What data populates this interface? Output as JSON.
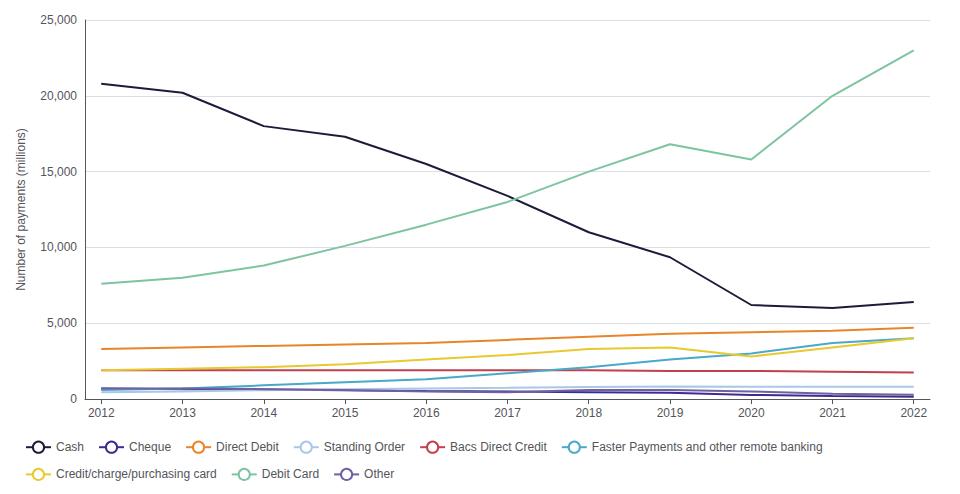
{
  "chart_data": {
    "type": "line",
    "x": [
      2012,
      2013,
      2014,
      2015,
      2016,
      2017,
      2018,
      2019,
      2020,
      2021,
      2022
    ],
    "series": [
      {
        "name": "Cash",
        "color": "#1c1c3a",
        "values": [
          20800,
          20200,
          18000,
          17300,
          15500,
          13400,
          11000,
          9350,
          6200,
          6000,
          6400
        ]
      },
      {
        "name": "Cheque",
        "color": "#3d2b8e",
        "values": [
          700,
          650,
          620,
          580,
          530,
          490,
          450,
          410,
          270,
          200,
          150
        ]
      },
      {
        "name": "Direct Debit",
        "color": "#e8852a",
        "values": [
          3300,
          3400,
          3500,
          3600,
          3700,
          3900,
          4100,
          4300,
          4400,
          4500,
          4700
        ]
      },
      {
        "name": "Standing Order",
        "color": "#a8c8e8",
        "values": [
          450,
          500,
          580,
          650,
          700,
          740,
          790,
          820,
          800,
          800,
          800
        ]
      },
      {
        "name": "Bacs Direct Credit",
        "color": "#c04050",
        "values": [
          1900,
          1900,
          1900,
          1900,
          1900,
          1900,
          1900,
          1850,
          1850,
          1800,
          1750
        ]
      },
      {
        "name": "Faster Payments and other remote banking",
        "color": "#4aa8c8",
        "values": [
          600,
          700,
          900,
          1100,
          1300,
          1700,
          2100,
          2600,
          3000,
          3700,
          4000
        ]
      },
      {
        "name": "Credit/charge/purchasing card",
        "color": "#e8c930",
        "values": [
          1900,
          2000,
          2100,
          2300,
          2600,
          2900,
          3300,
          3400,
          2800,
          3400,
          4000
        ]
      },
      {
        "name": "Debit Card",
        "color": "#7dc4a0",
        "values": [
          7600,
          8000,
          8800,
          10100,
          11500,
          13000,
          15000,
          16800,
          15800,
          20000,
          23000
        ]
      },
      {
        "name": "Other",
        "color": "#7060a0",
        "values": [
          700,
          700,
          650,
          600,
          500,
          450,
          600,
          600,
          500,
          350,
          280
        ]
      }
    ],
    "ylabel": "Number of payments (millions)",
    "xlim": [
      2011.8,
      2022.2
    ],
    "xticks": [
      2012,
      2013,
      2014,
      2015,
      2016,
      2017,
      2018,
      2019,
      2020,
      2021,
      2022
    ],
    "ylim": [
      0,
      25000
    ],
    "yticks": [
      0,
      {
        "value": 5000,
        "label": "5,000"
      },
      {
        "value": 10000,
        "label": "10,000"
      },
      {
        "value": 15000,
        "label": "15,000"
      },
      {
        "value": 20000,
        "label": "20,000"
      },
      {
        "value": 25000,
        "label": "25,000"
      }
    ],
    "grid": true,
    "legend": "bottom left"
  }
}
